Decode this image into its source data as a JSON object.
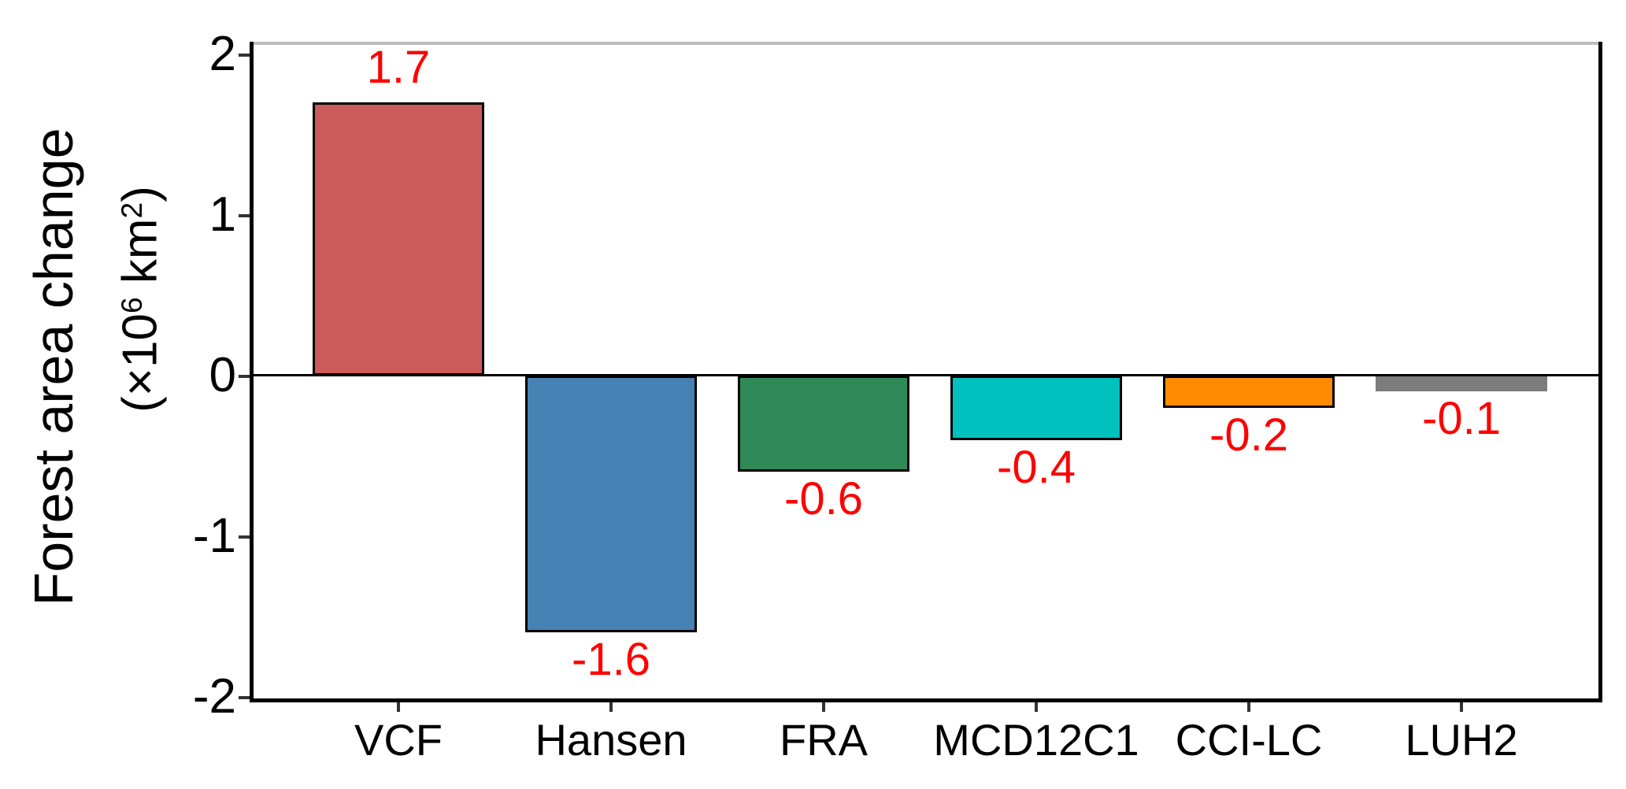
{
  "chart_data": {
    "type": "bar",
    "title": "",
    "categories": [
      "VCF",
      "Hansen",
      "FRA",
      "MCD12C1",
      "CCI-LC",
      "LUH2"
    ],
    "values": [
      1.7,
      -1.6,
      -0.6,
      -0.4,
      -0.2,
      -0.1
    ],
    "bar_labels": [
      "1.7",
      "-1.6",
      "-0.6",
      "-0.4",
      "-0.2",
      "-0.1"
    ],
    "bar_colors": [
      "#CC5B5B",
      "#4682B4",
      "#2E8B57",
      "#00C1BE",
      "#FF8C00",
      "#7C7C7C"
    ],
    "bar_border_colors": [
      "#000000",
      "#000000",
      "#000000",
      "#000000",
      "#000000",
      "#7C7C7C"
    ],
    "value_label_color": "#FF0000",
    "ylabel_line1": "Forest area change",
    "ylabel_line2_parts": {
      "open": "(×10",
      "sup1": "6",
      "mid": " km",
      "sup2": "2",
      "close": ")"
    },
    "y_ticks": [
      {
        "label": "2",
        "value": 2
      },
      {
        "label": "1",
        "value": 1
      },
      {
        "label": "0",
        "value": 0
      },
      {
        "label": "-1",
        "value": -1
      },
      {
        "label": "-2",
        "value": -2
      }
    ],
    "xlabel": "",
    "ylim": [
      -2,
      2.07
    ],
    "grid": false,
    "legend": "none",
    "zero_line": true
  }
}
